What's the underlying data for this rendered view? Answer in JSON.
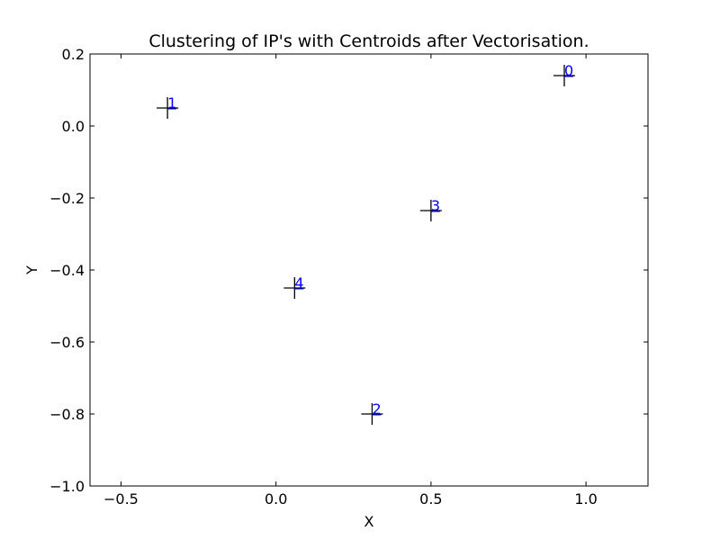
{
  "chart_data": {
    "type": "scatter",
    "title": "Clustering of IP's with Centroids after Vectorisation.",
    "xlabel": "X",
    "ylabel": "Y",
    "xlim": [
      -0.6,
      1.2
    ],
    "ylim": [
      -1.0,
      0.2
    ],
    "xticks": [
      -0.5,
      0.0,
      0.5,
      1.0
    ],
    "xtick_labels": [
      "−0.5",
      "0.0",
      "0.5",
      "1.0"
    ],
    "yticks": [
      -1.0,
      -0.8,
      -0.6,
      -0.4,
      -0.2,
      0.0,
      0.2
    ],
    "ytick_labels": [
      "−1.0",
      "−0.8",
      "−0.6",
      "−0.4",
      "−0.2",
      "0.0",
      "0.2"
    ],
    "grid": false,
    "marker": "+",
    "marker_color": "#000000",
    "label_color": "#0000ff",
    "points": [
      {
        "label": "0",
        "x": 0.93,
        "y": 0.14
      },
      {
        "label": "1",
        "x": -0.35,
        "y": 0.05
      },
      {
        "label": "2",
        "x": 0.31,
        "y": -0.8
      },
      {
        "label": "3",
        "x": 0.5,
        "y": -0.235
      },
      {
        "label": "4",
        "x": 0.06,
        "y": -0.45
      }
    ]
  }
}
